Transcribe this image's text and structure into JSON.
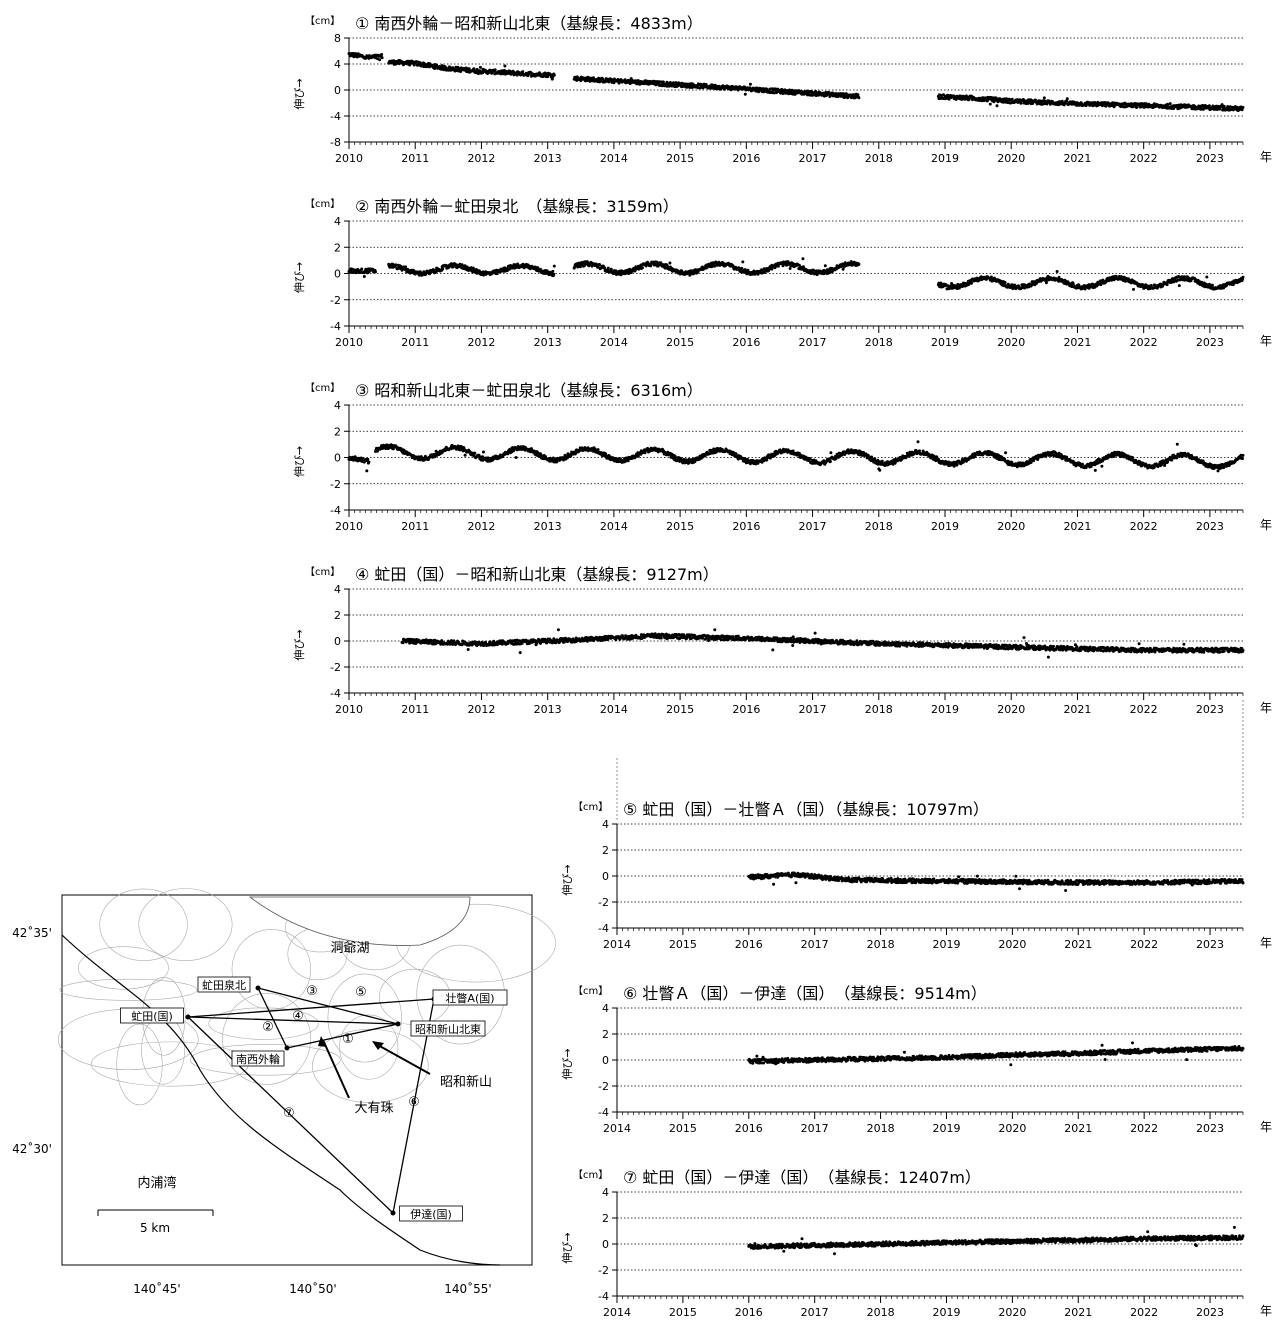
{
  "page": {
    "unit": "【cm】",
    "ylabel": "伸び→",
    "year_suffix": "年"
  },
  "chart_data": [
    {
      "type": "scatter",
      "id": "1",
      "title": "① 南西外輪－昭和新山北東（基線長：4833m）",
      "unit": "【cm】",
      "ylabel": "伸び→",
      "xlim": [
        2010,
        2023.5
      ],
      "ylim": [
        -8,
        8
      ],
      "yticks": [
        8,
        4,
        0,
        -4,
        -8
      ],
      "xticks": [
        2010,
        2011,
        2012,
        2013,
        2014,
        2015,
        2016,
        2017,
        2018,
        2019,
        2020,
        2021,
        2022,
        2023
      ],
      "segments": [
        {
          "x": [
            2010.0,
            2010.3,
            2010.5
          ],
          "y": [
            5.5,
            5.0,
            5.2
          ]
        },
        {
          "x": [
            2010.6,
            2011.0,
            2011.5,
            2012.0,
            2012.5,
            2013.1
          ],
          "y": [
            4.3,
            4.1,
            3.3,
            2.9,
            2.6,
            2.3
          ]
        },
        {
          "x": [
            2013.4,
            2014.0,
            2015.0,
            2016.0,
            2016.5,
            2017.0,
            2017.7
          ],
          "y": [
            1.8,
            1.4,
            0.8,
            0.2,
            -0.2,
            -0.5,
            -1.0
          ]
        },
        {
          "x": [
            2018.9,
            2019.5,
            2020.0,
            2021.0,
            2022.0,
            2023.0,
            2023.5
          ],
          "y": [
            -1.0,
            -1.3,
            -1.7,
            -2.1,
            -2.4,
            -2.7,
            -2.9
          ]
        }
      ],
      "grid": "dotted"
    },
    {
      "type": "scatter",
      "id": "2",
      "title": "② 南西外輪－虻田泉北　（基線長：3159m）",
      "unit": "【cm】",
      "ylabel": "伸び→",
      "xlim": [
        2010,
        2023.5
      ],
      "ylim": [
        -4,
        4
      ],
      "yticks": [
        4,
        2,
        0,
        -2,
        -4
      ],
      "xticks": [
        2010,
        2011,
        2012,
        2013,
        2014,
        2015,
        2016,
        2017,
        2018,
        2019,
        2020,
        2021,
        2022,
        2023
      ],
      "segments": [
        {
          "x": [
            2010.0,
            2010.4
          ],
          "y": [
            0.2,
            0.2
          ]
        },
        {
          "x": [
            2010.6,
            2013.1
          ],
          "offset": 0.3,
          "amp": 0.3,
          "phase": 0.0
        },
        {
          "x": [
            2013.4,
            2017.7
          ],
          "offset": 0.4,
          "amp": 0.35,
          "phase": 0.0
        },
        {
          "x": [
            2018.9,
            2023.5
          ],
          "offset": -0.7,
          "amp": 0.35,
          "phase": 0.0
        }
      ],
      "grid": "dotted"
    },
    {
      "type": "scatter",
      "id": "3",
      "title": "③ 昭和新山北東－虻田泉北（基線長：6316m）",
      "unit": "【cm】",
      "ylabel": "伸び→",
      "xlim": [
        2010,
        2023.5
      ],
      "ylim": [
        -4,
        4
      ],
      "yticks": [
        4,
        2,
        0,
        -2,
        -4
      ],
      "xticks": [
        2010,
        2011,
        2012,
        2013,
        2014,
        2015,
        2016,
        2017,
        2018,
        2019,
        2020,
        2021,
        2022,
        2023
      ],
      "segments": [
        {
          "x": [
            2010.0,
            2010.3
          ],
          "y": [
            0.0,
            -0.3
          ]
        },
        {
          "x": [
            2010.4,
            2023.5
          ],
          "offset_start": 0.4,
          "offset_end": -0.3,
          "amp": 0.45,
          "phase": 0.0
        }
      ],
      "grid": "dotted"
    },
    {
      "type": "scatter",
      "id": "4",
      "title": "④ 虻田（国）－昭和新山北東（基線長：9127m）",
      "unit": "【cm】",
      "ylabel": "伸び→",
      "xlim": [
        2010,
        2023.5
      ],
      "ylim": [
        -4,
        4
      ],
      "yticks": [
        4,
        2,
        0,
        -2,
        -4
      ],
      "xticks": [
        2010,
        2011,
        2012,
        2013,
        2014,
        2015,
        2016,
        2017,
        2018,
        2019,
        2020,
        2021,
        2022,
        2023
      ],
      "segments": [
        {
          "x": [
            2010.8,
            2012.0,
            2013.5,
            2014.6,
            2016.0,
            2017.0,
            2018.0,
            2019.5,
            2021.0,
            2022.0,
            2023.5
          ],
          "y": [
            0.0,
            -0.2,
            0.1,
            0.4,
            0.2,
            0.0,
            -0.2,
            -0.4,
            -0.6,
            -0.7,
            -0.7
          ]
        }
      ],
      "grid": "dotted"
    },
    {
      "type": "scatter",
      "id": "5",
      "title": "⑤ 虻田（国）－壮瞥Ａ（国）（基線長：10797m）",
      "unit": "【cm】",
      "ylabel": "伸び→",
      "xlim": [
        2014,
        2023.5
      ],
      "ylim": [
        -4,
        4
      ],
      "yticks": [
        4,
        2,
        0,
        -2,
        -4
      ],
      "xticks": [
        2014,
        2015,
        2016,
        2017,
        2018,
        2019,
        2020,
        2021,
        2022,
        2023
      ],
      "segments": [
        {
          "x": [
            2016.0,
            2016.7,
            2017.5,
            2019.0,
            2021.0,
            2022.0,
            2023.5
          ],
          "y": [
            -0.1,
            0.1,
            -0.3,
            -0.4,
            -0.5,
            -0.5,
            -0.4
          ]
        }
      ],
      "grid": "dotted"
    },
    {
      "type": "scatter",
      "id": "6",
      "title": "⑥ 壮瞥Ａ（国）－伊達（国）　（基線長：9514m）",
      "unit": "【cm】",
      "ylabel": "伸び→",
      "xlim": [
        2014,
        2023.5
      ],
      "ylim": [
        -4,
        4
      ],
      "yticks": [
        4,
        2,
        0,
        -2,
        -4
      ],
      "xticks": [
        2014,
        2015,
        2016,
        2017,
        2018,
        2019,
        2020,
        2021,
        2022,
        2023
      ],
      "segments": [
        {
          "x": [
            2016.0,
            2017.0,
            2018.0,
            2019.0,
            2020.0,
            2021.0,
            2022.0,
            2023.5
          ],
          "y": [
            -0.1,
            0.0,
            0.1,
            0.2,
            0.4,
            0.5,
            0.7,
            0.9
          ]
        }
      ],
      "grid": "dotted"
    },
    {
      "type": "scatter",
      "id": "7",
      "title": "⑦ 虻田（国）－伊達（国）　（基線長：12407m）",
      "unit": "【cm】",
      "ylabel": "伸び→",
      "xlim": [
        2014,
        2023.5
      ],
      "ylim": [
        -4,
        4
      ],
      "yticks": [
        4,
        2,
        0,
        -2,
        -4
      ],
      "xticks": [
        2014,
        2015,
        2016,
        2017,
        2018,
        2019,
        2020,
        2021,
        2022,
        2023
      ],
      "segments": [
        {
          "x": [
            2016.0,
            2017.0,
            2018.0,
            2019.0,
            2020.0,
            2021.0,
            2022.0,
            2023.5
          ],
          "y": [
            -0.2,
            -0.1,
            0.0,
            0.1,
            0.2,
            0.3,
            0.4,
            0.5
          ]
        }
      ],
      "grid": "dotted"
    }
  ],
  "map": {
    "lake_label": "洞爺湖",
    "bay_label": "内浦湾",
    "mountain_label": "昭和新山",
    "mountain2_label": "大有珠",
    "scale_label": "5 km",
    "lat_labels": [
      "42˚35'",
      "42˚30'"
    ],
    "lon_labels": [
      "140˚45'",
      "140˚50'",
      "140˚55'"
    ],
    "stations": [
      {
        "key": "abuta_izumikita",
        "label": "虻田泉北"
      },
      {
        "key": "abuta_kuni",
        "label": "虻田(国)"
      },
      {
        "key": "nansei_gairin",
        "label": "南西外輪"
      },
      {
        "key": "showa_hokuto",
        "label": "昭和新山北東"
      },
      {
        "key": "sobetsu_a",
        "label": "壮瞥A(国)"
      },
      {
        "key": "date_kuni",
        "label": "伊達(国)"
      }
    ],
    "baseline_numbers": [
      "①",
      "②",
      "③",
      "④",
      "⑤",
      "⑥",
      "⑦"
    ]
  }
}
